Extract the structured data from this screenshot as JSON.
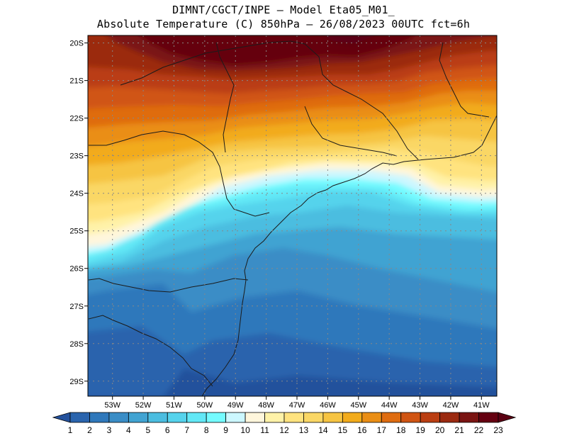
{
  "header": {
    "line1": "DIMNT/CGCT/INPE –  Model Eta05_M01_",
    "line2": "Absolute Temperature (C) 850hPa –  26/08/2023 00UTC fct=6h"
  },
  "map": {
    "lon_range": [
      -53.8,
      -40.5
    ],
    "lat_range": [
      -29.4,
      -19.8
    ],
    "lat_ticks": [
      {
        "value": -20,
        "label": "20S"
      },
      {
        "value": -21,
        "label": "21S"
      },
      {
        "value": -22,
        "label": "22S"
      },
      {
        "value": -23,
        "label": "23S"
      },
      {
        "value": -24,
        "label": "24S"
      },
      {
        "value": -25,
        "label": "25S"
      },
      {
        "value": -26,
        "label": "26S"
      },
      {
        "value": -27,
        "label": "27S"
      },
      {
        "value": -28,
        "label": "28S"
      },
      {
        "value": -29,
        "label": "29S"
      }
    ],
    "lon_ticks": [
      {
        "value": -53,
        "label": "53W"
      },
      {
        "value": -52,
        "label": "52W"
      },
      {
        "value": -51,
        "label": "51W"
      },
      {
        "value": -50,
        "label": "50W"
      },
      {
        "value": -49,
        "label": "49W"
      },
      {
        "value": -48,
        "label": "48W"
      },
      {
        "value": -47,
        "label": "47W"
      },
      {
        "value": -46,
        "label": "46W"
      },
      {
        "value": -45,
        "label": "45W"
      },
      {
        "value": -44,
        "label": "44W"
      },
      {
        "value": -43,
        "label": "43W"
      },
      {
        "value": -42,
        "label": "42W"
      },
      {
        "value": -41,
        "label": "41W"
      }
    ],
    "gridlines": "dotted"
  },
  "colorbar": {
    "labels": [
      "1",
      "2",
      "3",
      "4",
      "5",
      "6",
      "7",
      "8",
      "9",
      "10",
      "11",
      "12",
      "13",
      "14",
      "15",
      "16",
      "17",
      "18",
      "19",
      "20",
      "21",
      "22",
      "23"
    ],
    "colors": [
      "#24519c",
      "#2a64ad",
      "#2f78bb",
      "#3a8dc6",
      "#41a3d2",
      "#4bbde0",
      "#55d3ec",
      "#62e8f6",
      "#74fbff",
      "#ccf7ff",
      "#fff6dc",
      "#fff2a8",
      "#ffe37f",
      "#fad765",
      "#f6c442",
      "#f2ab1b",
      "#ea8e15",
      "#df6c10",
      "#d05513",
      "#ba3e12",
      "#9b2a10",
      "#7a1412",
      "#650010",
      "#5a0012"
    ],
    "extend": "both"
  }
}
